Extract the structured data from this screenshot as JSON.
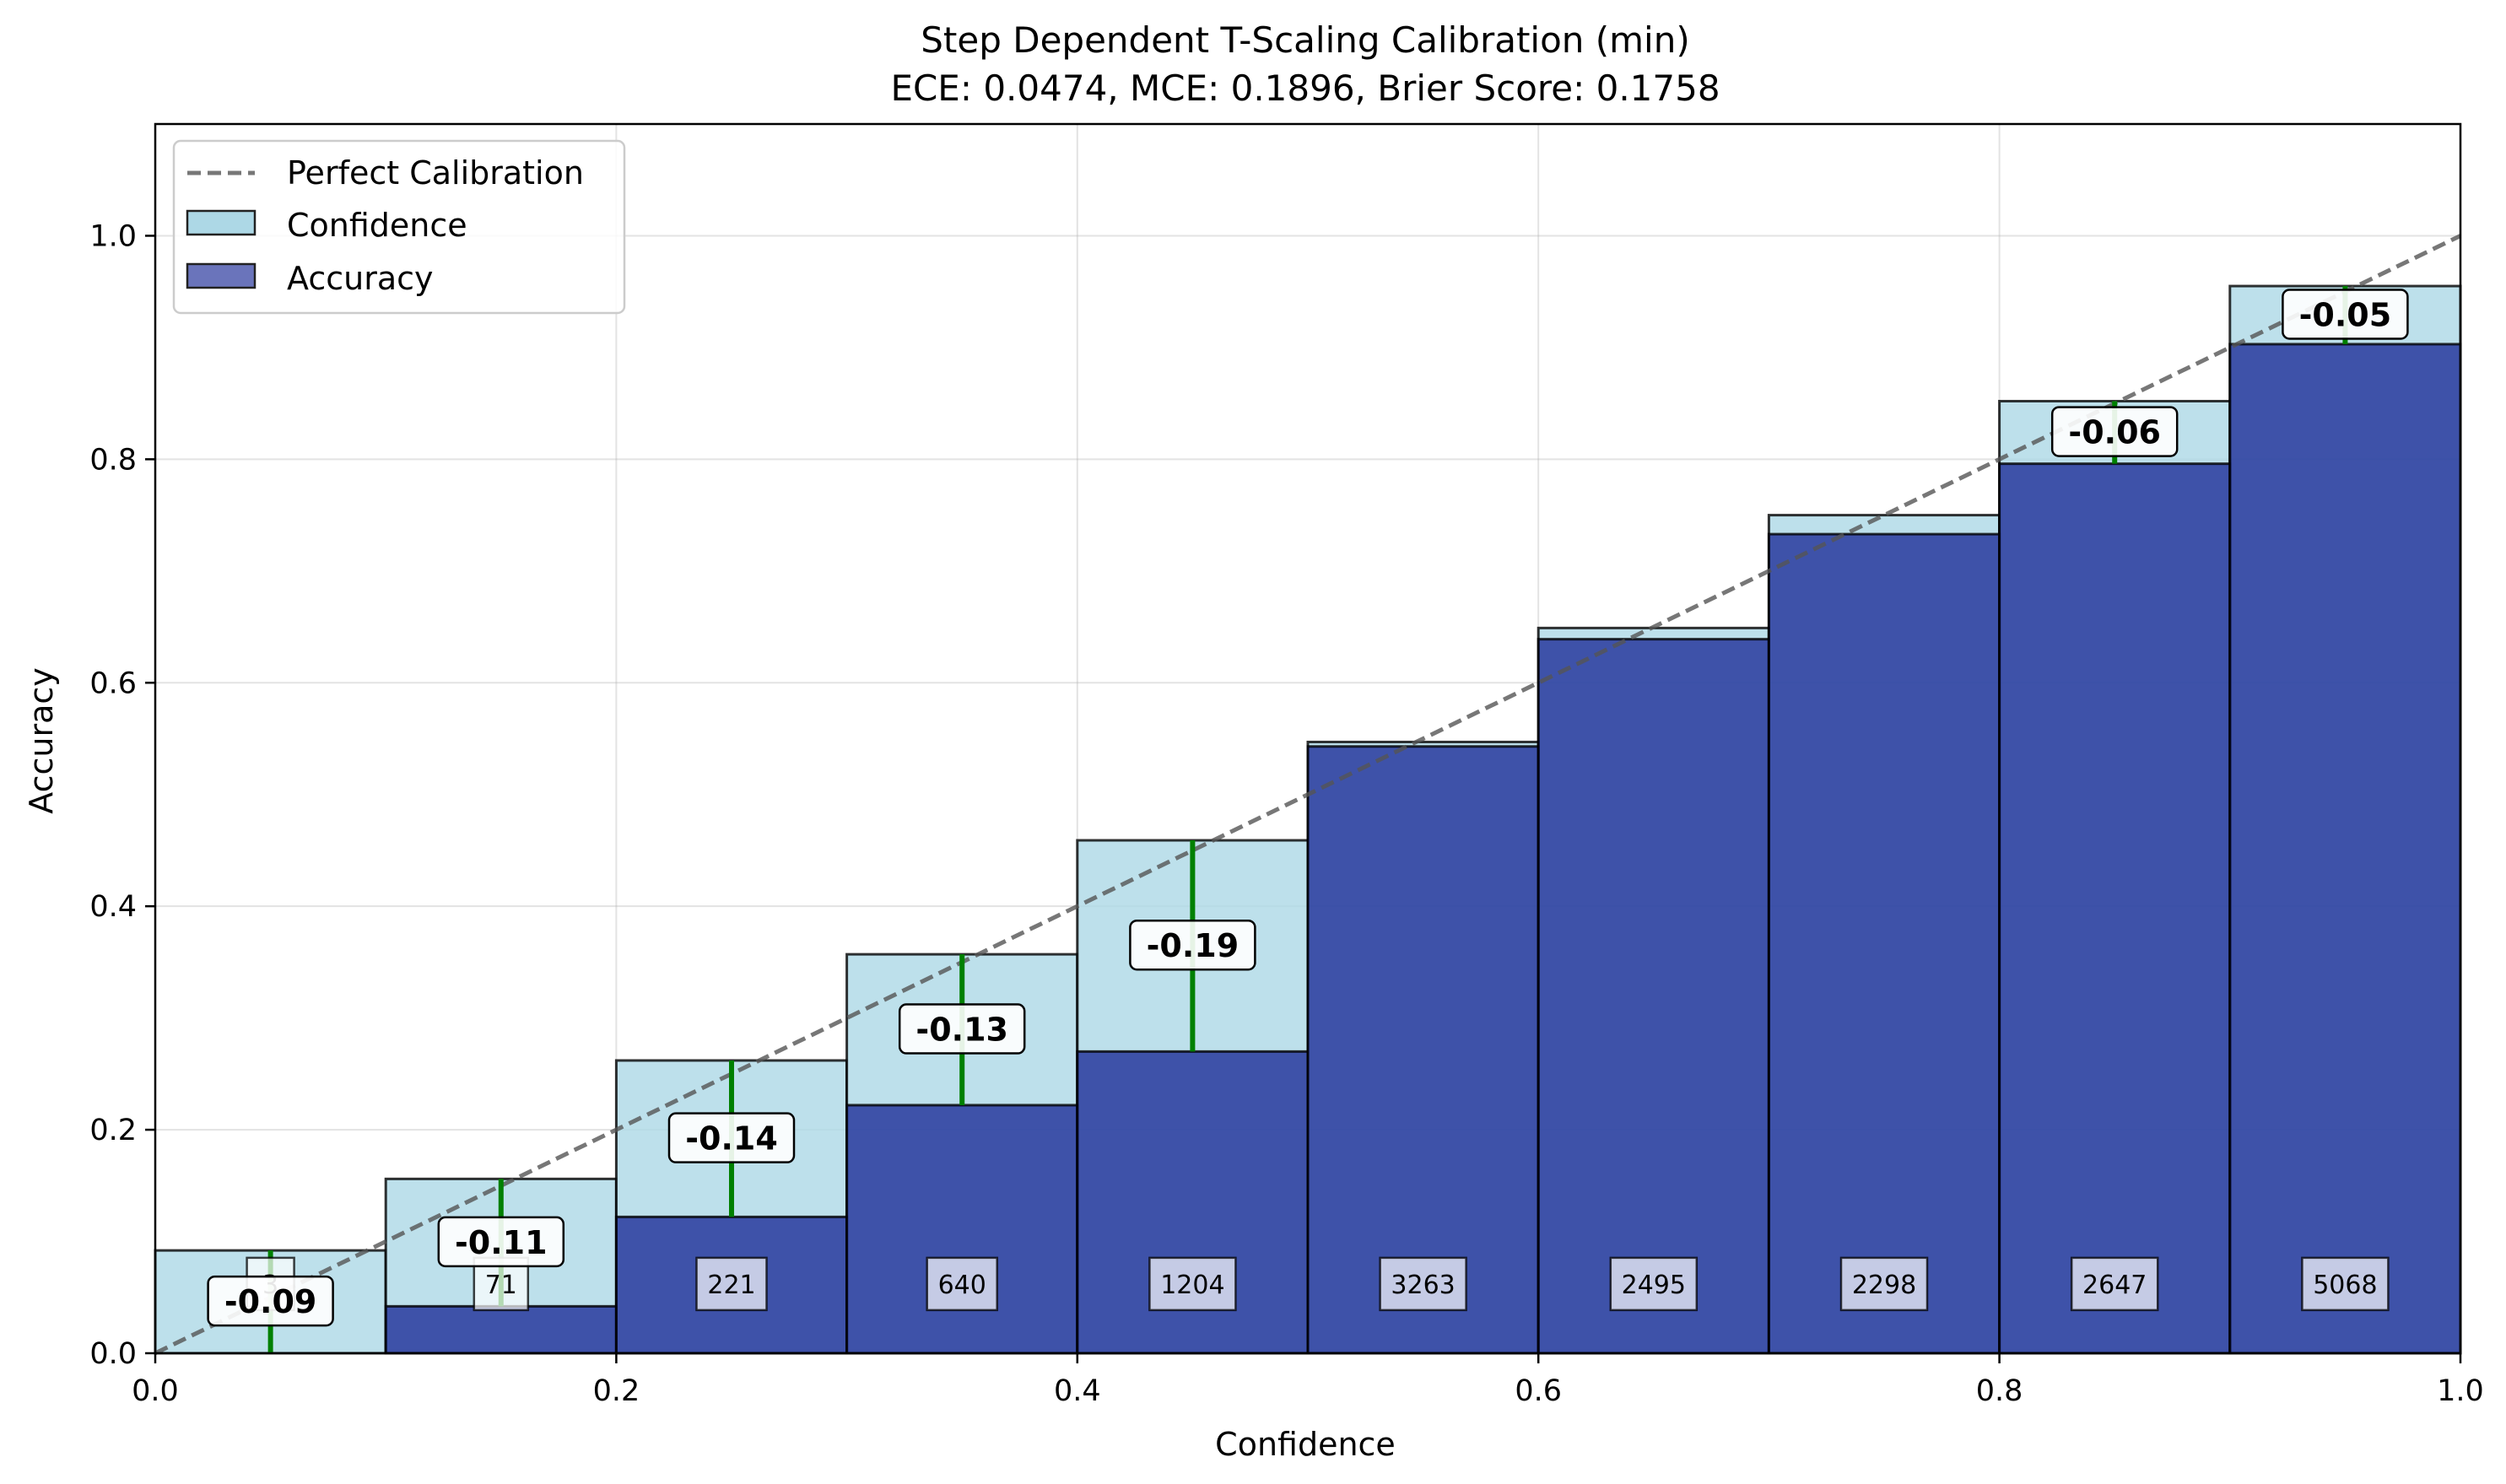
{
  "chart_data": {
    "type": "bar",
    "title": "Step Dependent T-Scaling Calibration (min)",
    "subtitle": "ECE: 0.0474, MCE: 0.1896, Brier Score: 0.1758",
    "xlabel": "Confidence",
    "ylabel": "Accuracy",
    "xlim": [
      0.0,
      1.0
    ],
    "ylim": [
      0.0,
      1.1
    ],
    "xticks": [
      "0.0",
      "0.2",
      "0.4",
      "0.6",
      "0.8",
      "1.0"
    ],
    "yticks": [
      "0.0",
      "0.2",
      "0.4",
      "0.6",
      "0.8",
      "1.0"
    ],
    "grid": true,
    "legend_position": "top-left",
    "legend": [
      "Perfect Calibration",
      "Confidence",
      "Accuracy"
    ],
    "bins": [
      {
        "x0": 0.0,
        "x1": 0.1,
        "confidence": 0.092,
        "accuracy": 0.0,
        "count": "3",
        "gap_label": "-0.09"
      },
      {
        "x0": 0.1,
        "x1": 0.2,
        "confidence": 0.156,
        "accuracy": 0.042,
        "count": "71",
        "gap_label": "-0.11"
      },
      {
        "x0": 0.2,
        "x1": 0.3,
        "confidence": 0.262,
        "accuracy": 0.122,
        "count": "221",
        "gap_label": "-0.14"
      },
      {
        "x0": 0.3,
        "x1": 0.4,
        "confidence": 0.357,
        "accuracy": 0.222,
        "count": "640",
        "gap_label": "-0.13"
      },
      {
        "x0": 0.4,
        "x1": 0.5,
        "confidence": 0.459,
        "accuracy": 0.27,
        "count": "1204",
        "gap_label": "-0.19"
      },
      {
        "x0": 0.5,
        "x1": 0.6,
        "confidence": 0.547,
        "accuracy": 0.543,
        "count": "3263",
        "gap_label": ""
      },
      {
        "x0": 0.6,
        "x1": 0.7,
        "confidence": 0.649,
        "accuracy": 0.639,
        "count": "2495",
        "gap_label": ""
      },
      {
        "x0": 0.7,
        "x1": 0.8,
        "confidence": 0.75,
        "accuracy": 0.733,
        "count": "2298",
        "gap_label": ""
      },
      {
        "x0": 0.8,
        "x1": 0.9,
        "confidence": 0.852,
        "accuracy": 0.796,
        "count": "2647",
        "gap_label": "-0.06"
      },
      {
        "x0": 0.9,
        "x1": 1.0,
        "confidence": 0.955,
        "accuracy": 0.903,
        "count": "5068",
        "gap_label": "-0.05"
      }
    ],
    "colors": {
      "confidence": "#add8e6",
      "accuracy": "#1a2a96",
      "gap": "#008000",
      "diagonal": "#555555",
      "count_box": "#b4bad9"
    }
  }
}
